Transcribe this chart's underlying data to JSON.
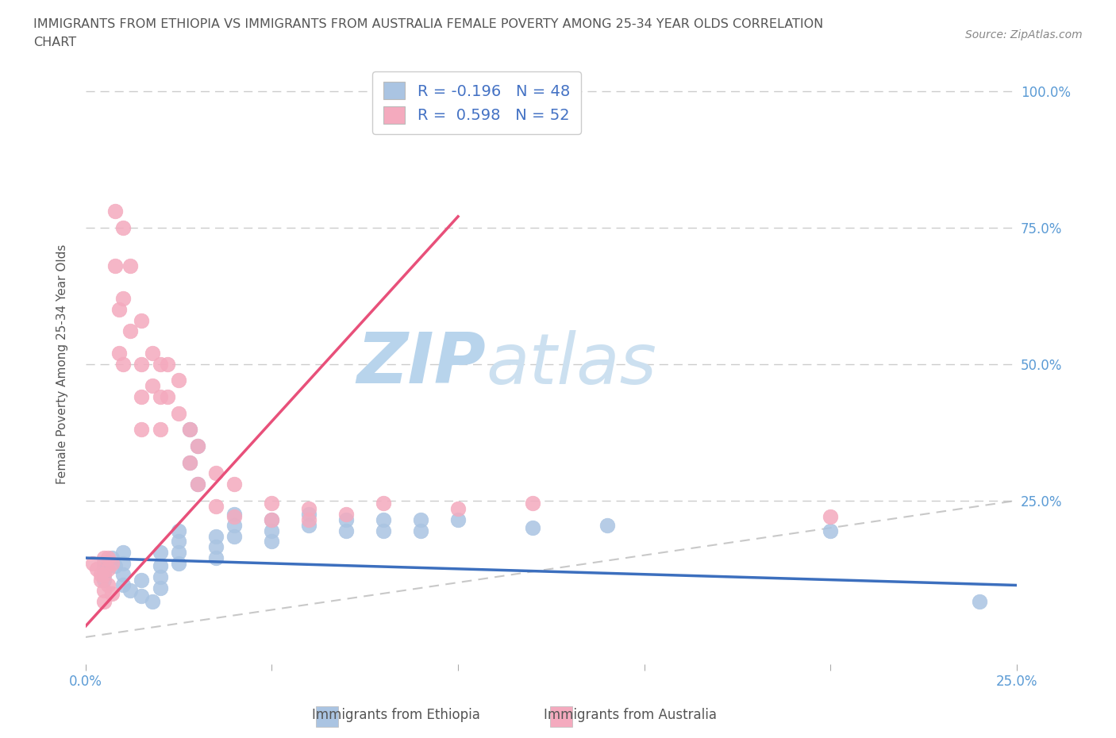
{
  "title_line1": "IMMIGRANTS FROM ETHIOPIA VS IMMIGRANTS FROM AUSTRALIA FEMALE POVERTY AMONG 25-34 YEAR OLDS CORRELATION",
  "title_line2": "CHART",
  "source": "Source: ZipAtlas.com",
  "ylabel": "Female Poverty Among 25-34 Year Olds",
  "xlim": [
    0.0,
    0.25
  ],
  "ylim": [
    -0.05,
    1.05
  ],
  "legend_ethiopia_r": "-0.196",
  "legend_ethiopia_n": "48",
  "legend_australia_r": "0.598",
  "legend_australia_n": "52",
  "ethiopia_color": "#aac4e2",
  "australia_color": "#f4aabe",
  "trendline_ethiopia_color": "#3c6fbe",
  "trendline_australia_color": "#e8507a",
  "diagonal_color": "#bbbbbb",
  "background_color": "#ffffff",
  "grid_color": "#cccccc",
  "watermark_color": "#ccdff0",
  "ethiopia_scatter": [
    [
      0.005,
      0.135
    ],
    [
      0.005,
      0.125
    ],
    [
      0.005,
      0.115
    ],
    [
      0.005,
      0.105
    ],
    [
      0.007,
      0.145
    ],
    [
      0.008,
      0.13
    ],
    [
      0.01,
      0.155
    ],
    [
      0.01,
      0.135
    ],
    [
      0.01,
      0.115
    ],
    [
      0.01,
      0.095
    ],
    [
      0.012,
      0.085
    ],
    [
      0.015,
      0.105
    ],
    [
      0.015,
      0.075
    ],
    [
      0.018,
      0.065
    ],
    [
      0.02,
      0.155
    ],
    [
      0.02,
      0.13
    ],
    [
      0.02,
      0.11
    ],
    [
      0.02,
      0.09
    ],
    [
      0.025,
      0.195
    ],
    [
      0.025,
      0.175
    ],
    [
      0.025,
      0.155
    ],
    [
      0.025,
      0.135
    ],
    [
      0.028,
      0.38
    ],
    [
      0.028,
      0.32
    ],
    [
      0.03,
      0.35
    ],
    [
      0.03,
      0.28
    ],
    [
      0.035,
      0.185
    ],
    [
      0.035,
      0.165
    ],
    [
      0.035,
      0.145
    ],
    [
      0.04,
      0.225
    ],
    [
      0.04,
      0.205
    ],
    [
      0.04,
      0.185
    ],
    [
      0.05,
      0.215
    ],
    [
      0.05,
      0.195
    ],
    [
      0.05,
      0.175
    ],
    [
      0.06,
      0.225
    ],
    [
      0.06,
      0.205
    ],
    [
      0.07,
      0.215
    ],
    [
      0.07,
      0.195
    ],
    [
      0.08,
      0.215
    ],
    [
      0.08,
      0.195
    ],
    [
      0.09,
      0.215
    ],
    [
      0.09,
      0.195
    ],
    [
      0.1,
      0.215
    ],
    [
      0.12,
      0.2
    ],
    [
      0.14,
      0.205
    ],
    [
      0.2,
      0.195
    ],
    [
      0.24,
      0.065
    ]
  ],
  "australia_scatter": [
    [
      0.002,
      0.135
    ],
    [
      0.003,
      0.125
    ],
    [
      0.004,
      0.115
    ],
    [
      0.004,
      0.105
    ],
    [
      0.005,
      0.145
    ],
    [
      0.005,
      0.115
    ],
    [
      0.005,
      0.085
    ],
    [
      0.005,
      0.065
    ],
    [
      0.006,
      0.145
    ],
    [
      0.006,
      0.125
    ],
    [
      0.006,
      0.095
    ],
    [
      0.007,
      0.135
    ],
    [
      0.007,
      0.08
    ],
    [
      0.008,
      0.78
    ],
    [
      0.008,
      0.68
    ],
    [
      0.009,
      0.6
    ],
    [
      0.009,
      0.52
    ],
    [
      0.01,
      0.75
    ],
    [
      0.01,
      0.62
    ],
    [
      0.01,
      0.5
    ],
    [
      0.012,
      0.68
    ],
    [
      0.012,
      0.56
    ],
    [
      0.015,
      0.58
    ],
    [
      0.015,
      0.5
    ],
    [
      0.015,
      0.44
    ],
    [
      0.015,
      0.38
    ],
    [
      0.018,
      0.52
    ],
    [
      0.018,
      0.46
    ],
    [
      0.02,
      0.5
    ],
    [
      0.02,
      0.44
    ],
    [
      0.02,
      0.38
    ],
    [
      0.022,
      0.5
    ],
    [
      0.022,
      0.44
    ],
    [
      0.025,
      0.47
    ],
    [
      0.025,
      0.41
    ],
    [
      0.028,
      0.38
    ],
    [
      0.028,
      0.32
    ],
    [
      0.03,
      0.35
    ],
    [
      0.03,
      0.28
    ],
    [
      0.035,
      0.3
    ],
    [
      0.035,
      0.24
    ],
    [
      0.04,
      0.28
    ],
    [
      0.04,
      0.22
    ],
    [
      0.05,
      0.245
    ],
    [
      0.05,
      0.215
    ],
    [
      0.06,
      0.235
    ],
    [
      0.06,
      0.215
    ],
    [
      0.07,
      0.225
    ],
    [
      0.08,
      0.245
    ],
    [
      0.1,
      0.235
    ],
    [
      0.12,
      0.245
    ],
    [
      0.2,
      0.22
    ]
  ]
}
